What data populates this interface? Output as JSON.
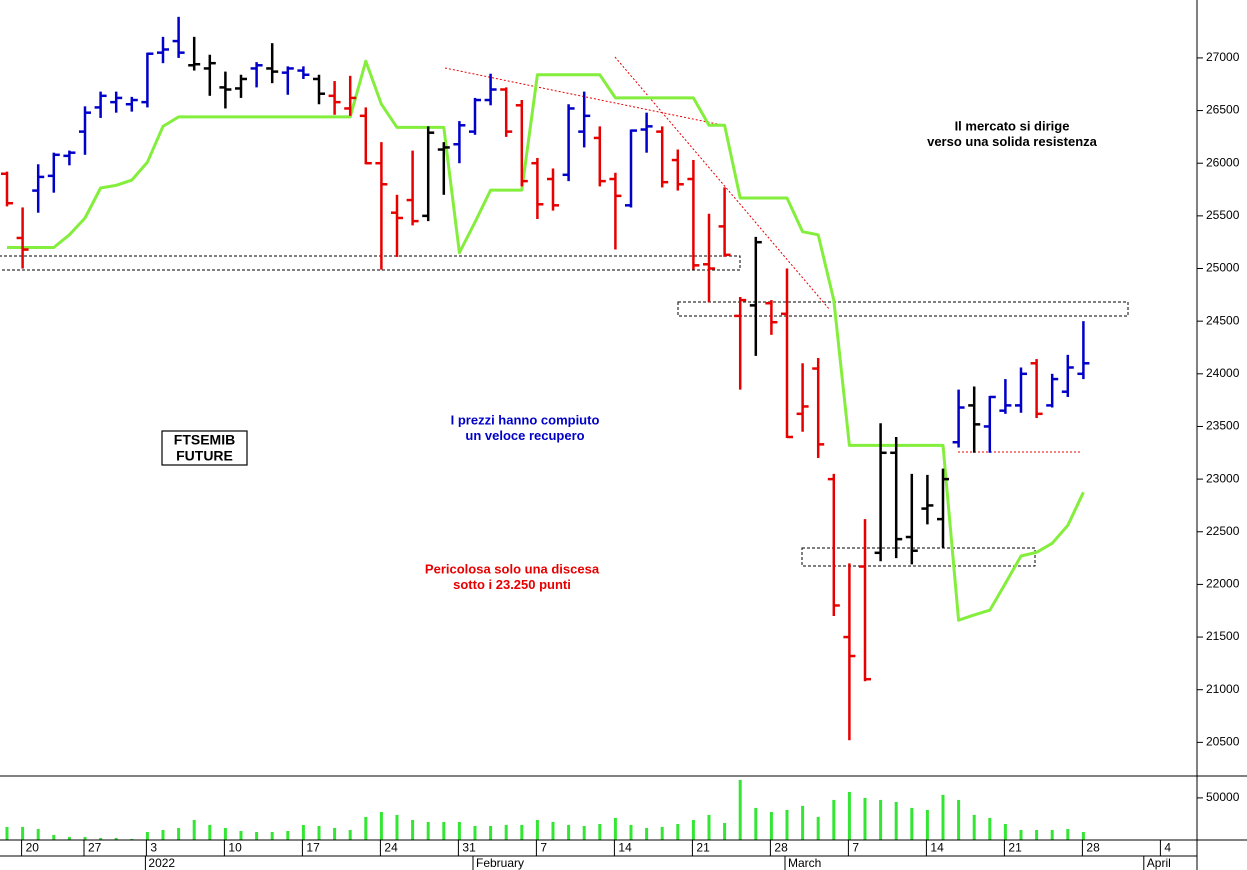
{
  "chart_data": [
    {
      "type": "ohlc",
      "categories": [
        null,
        "20",
        null,
        null,
        null,
        "27",
        null,
        null,
        null,
        "3",
        null,
        null,
        null,
        null,
        "10",
        null,
        null,
        null,
        null,
        "17",
        null,
        null,
        null,
        null,
        "24",
        null,
        null,
        null,
        null,
        "31",
        null,
        null,
        null,
        null,
        "7",
        null,
        null,
        null,
        null,
        "14",
        null,
        null,
        null,
        null,
        "21",
        null,
        null,
        null,
        null,
        "28",
        null,
        null,
        null,
        null,
        "7",
        null,
        null,
        null,
        null,
        "14",
        null,
        null,
        null,
        null,
        "21",
        null,
        null,
        null,
        null,
        "28",
        null,
        null,
        null,
        null,
        "4"
      ],
      "month_labels": [
        {
          "value": 9,
          "label": "2022"
        },
        {
          "value": 30,
          "label": "February"
        },
        {
          "value": 50,
          "label": "March"
        },
        {
          "value": 73,
          "label": "April"
        }
      ],
      "open": [
        25900,
        25290,
        25740,
        25880,
        26070,
        26300,
        26530,
        26580,
        26560,
        26580,
        27050,
        27160,
        26930,
        26900,
        26720,
        26710,
        26900,
        26900,
        26860,
        26880,
        26800,
        26640,
        26520,
        26450,
        26000,
        25530,
        25650,
        25500,
        26130,
        26180,
        26300,
        26600,
        26700,
        26550,
        26000,
        25850,
        25890,
        26300,
        26240,
        25850,
        25600,
        26320,
        26300,
        26030,
        25850,
        25040,
        25400,
        24550,
        24650,
        24670,
        24570,
        23620,
        24050,
        23000,
        21500,
        22170,
        22300,
        23250,
        22450,
        22720,
        22620,
        23350,
        23700,
        23500,
        23650,
        23700,
        24100,
        23700,
        23830,
        24000,
        null,
        null,
        null,
        null,
        null
      ],
      "high": [
        25920,
        25580,
        25990,
        26100,
        26120,
        26540,
        26680,
        26680,
        26630,
        27050,
        27200,
        27390,
        27200,
        27030,
        26870,
        26840,
        26960,
        27140,
        26920,
        26920,
        26840,
        26780,
        26830,
        26530,
        26200,
        25700,
        26120,
        26350,
        26200,
        26400,
        26620,
        26850,
        26720,
        26600,
        26050,
        25950,
        26560,
        26680,
        26350,
        25910,
        26320,
        26480,
        26350,
        26130,
        26030,
        25520,
        25770,
        24730,
        25300,
        24700,
        25000,
        24100,
        24150,
        23050,
        22200,
        22620,
        23530,
        23400,
        23050,
        23040,
        23100,
        23850,
        23880,
        23790,
        23950,
        24060,
        24140,
        24000,
        24180,
        24500,
        null,
        null,
        null,
        null,
        null
      ],
      "low": [
        25590,
        25000,
        25530,
        25720,
        25980,
        26080,
        26430,
        26480,
        26490,
        26530,
        26950,
        27000,
        26880,
        26640,
        26520,
        26620,
        26720,
        26760,
        26650,
        26800,
        26560,
        26460,
        26450,
        25990,
        24990,
        25110,
        25410,
        25450,
        25700,
        26000,
        26270,
        26550,
        26250,
        25780,
        25470,
        25550,
        25830,
        26150,
        25780,
        25180,
        25580,
        26100,
        25770,
        25740,
        24990,
        24680,
        25110,
        23850,
        24170,
        24370,
        23390,
        23450,
        23200,
        21700,
        20520,
        21080,
        22220,
        22250,
        22190,
        22570,
        22350,
        23300,
        23250,
        23250,
        23620,
        23630,
        23580,
        23680,
        23780,
        23950,
        null,
        null,
        null,
        null,
        null
      ],
      "close": [
        25620,
        25180,
        25870,
        26080,
        26100,
        26480,
        26640,
        26620,
        26600,
        27040,
        27080,
        27050,
        26940,
        26950,
        26700,
        26800,
        26930,
        26870,
        26900,
        26840,
        26660,
        26580,
        26620,
        26000,
        25800,
        25480,
        25450,
        26290,
        26150,
        26360,
        26600,
        26700,
        26300,
        25830,
        25610,
        25600,
        26520,
        26450,
        25830,
        25690,
        26310,
        26350,
        25820,
        25800,
        25030,
        25000,
        25130,
        24700,
        25250,
        24490,
        23400,
        23690,
        23330,
        21800,
        21320,
        21100,
        23250,
        22430,
        22320,
        22750,
        23000,
        23680,
        23520,
        23780,
        23700,
        24000,
        23620,
        23950,
        24060,
        24100,
        null,
        null,
        null,
        null,
        null
      ],
      "colors": [
        "#e60000",
        "#e60000",
        "#0000c8",
        "#0000c8",
        "#0000c8",
        "#0000c8",
        "#0000c8",
        "#0000c8",
        "#0000c8",
        "#0000c8",
        "#0000c8",
        "#0000c8",
        "#000000",
        "#000000",
        "#000000",
        "#000000",
        "#0000c8",
        "#000000",
        "#0000c8",
        "#0000c8",
        "#000000",
        "#e60000",
        "#e60000",
        "#e60000",
        "#e60000",
        "#e60000",
        "#e60000",
        "#000000",
        "#000000",
        "#0000c8",
        "#0000c8",
        "#0000c8",
        "#e60000",
        "#e60000",
        "#e60000",
        "#e60000",
        "#0000c8",
        "#0000c8",
        "#e60000",
        "#e60000",
        "#0000c8",
        "#0000c8",
        "#e60000",
        "#e60000",
        "#e60000",
        "#e60000",
        "#e60000",
        "#e60000",
        "#000000",
        "#e60000",
        "#e60000",
        "#e60000",
        "#e60000",
        "#e60000",
        "#e60000",
        "#e60000",
        "#000000",
        "#000000",
        "#000000",
        "#000000",
        "#000000",
        "#0000c8",
        "#000000",
        "#0000c8",
        "#0000c8",
        "#0000c8",
        "#e60000",
        "#0000c8",
        "#0000c8",
        "#0000c8",
        null,
        null,
        null,
        null,
        null
      ],
      "trend": {
        "color": "#84ee3c",
        "values": [
          25200,
          25200,
          25200,
          25200,
          25320,
          25480,
          25765,
          25790,
          25840,
          26010,
          26350,
          26440,
          26440,
          26440,
          26440,
          26440,
          26440,
          26440,
          26440,
          26440,
          26440,
          26440,
          26440,
          26970,
          26560,
          26340,
          26340,
          26340,
          26340,
          25150,
          25440,
          25745,
          25745,
          25745,
          26840,
          26840,
          26840,
          26840,
          26840,
          26620,
          26620,
          26620,
          26620,
          26620,
          26620,
          26360,
          26360,
          25670,
          25670,
          25670,
          25670,
          25350,
          25320,
          24700,
          23320,
          23320,
          23320,
          23320,
          23320,
          23320,
          23320,
          21660,
          21710,
          21755,
          22010,
          22270,
          22305,
          22390,
          22560,
          22875,
          null,
          null,
          null,
          null,
          null
        ]
      },
      "ylim": [
        20190,
        27550
      ],
      "yticks": [
        20500,
        21000,
        21500,
        22000,
        22500,
        23000,
        23500,
        24000,
        24500,
        25000,
        25500,
        26000,
        26500,
        27000
      ],
      "label_box": [
        "FTSEMIB",
        "FUTURE"
      ],
      "annotations": [
        {
          "lines": [
            "Il mercato si dirige",
            "verso una solida resistenza"
          ],
          "color": "#000000"
        },
        {
          "lines": [
            "I prezzi hanno compiuto",
            "un veloce recupero"
          ],
          "color": "#0000c8"
        },
        {
          "lines": [
            "Pericolosa solo una discesa",
            "sotto i 23.250 punti"
          ],
          "color": "#e60000"
        }
      ]
    },
    {
      "type": "bar",
      "values": [
        15500,
        15500,
        13100,
        6000,
        3600,
        3600,
        2400,
        2400,
        1200,
        9500,
        11900,
        14300,
        23800,
        17900,
        14300,
        10700,
        9500,
        9500,
        10700,
        17900,
        16700,
        14300,
        11900,
        27400,
        33300,
        29800,
        23800,
        21400,
        21400,
        21400,
        16700,
        16700,
        17900,
        17900,
        23800,
        21400,
        17900,
        16700,
        19000,
        26200,
        17900,
        14300,
        15500,
        19000,
        23800,
        29800,
        20200,
        71400,
        38100,
        33300,
        35700,
        40500,
        27400,
        47600,
        57100,
        50000,
        47600,
        45200,
        38100,
        35700,
        53600,
        47600,
        29800,
        26200,
        19000,
        11900,
        11900,
        11900,
        13100,
        9500,
        null,
        null,
        null,
        null,
        null
      ],
      "color": "#33e633",
      "ylim": [
        0,
        76000
      ],
      "yticks": [
        50000
      ]
    }
  ]
}
